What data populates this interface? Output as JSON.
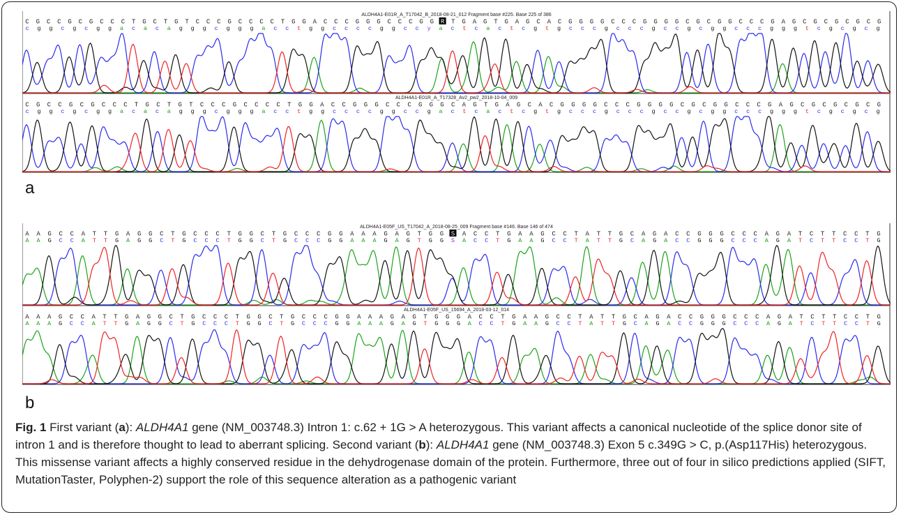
{
  "colors": {
    "A": "#19a319",
    "C": "#2a2aee",
    "G": "#111111",
    "T": "#ee2222",
    "N": "#8a2be2"
  },
  "figure": {
    "panel_a": {
      "label": "a",
      "trace_top": {
        "header": "ALDH4A1-E01R_A_T17042_B_2018-08-21_012 Fragment base #225. Base 225 of 386",
        "seq_upper": "CGCCGCGCCCTGCTGTCCCGCCCCTGGACCCGGGCCCGGRTGAGTGAGCACGGGGCCCGGGGCGCGGCCCGAGCGCGCGCG",
        "seq_lower": "cggcgcggacacagggcgggacctggccccggccyactcactcgtgcccgcccgccgcggcccgggtcgcgcg",
        "highlight": "R"
      },
      "trace_bottom": {
        "header": "ALDH4A1-E01R_A_T17328_Av2_pw2_2018-10-04_009",
        "seq_upper": "CGCCGCGCCCTGCTGTCCCGCCCCTGGACCGGGCCCGGGCAGTGAGCACGGGGCCCGGGGCGCGGCCCGAGCGCGCGCG",
        "seq_lower": "cggcgcggacacagggcgggacctggccccggccgactcactcgtgcccgcccgccgcggcccgggtcgcgcg"
      }
    },
    "panel_b": {
      "label": "b",
      "trace_top": {
        "header": "ALDH4A1-E05F_US_T17042_A_2018-08-25_009 Fragment base #146. Base 146 of 474",
        "seq_upper": "AAGCCATTGAGGCTGCCCTGGCTGCCCGGAAAGAGTGGSACCTGAAGCCTATTGCAGACCGGGCCCAGATCTTCCTG",
        "seq_lower": "AAGCCATTGAGGCTGCCCTGGCTGCCCGGAAAGAGTGGSACCTGAAGCCTATTGCAGACCGGGCCCAGATCTTCCTG",
        "highlight": "S"
      },
      "trace_bottom": {
        "header": "ALDH4A1-E05F_US_15694_A_2018-03-12_014",
        "seq_upper": "AAAGCCATTGAGGCTGCCCTGGCTGCCCGGAAAGAGTGGGACCTGAAGCCTATTGCAGACCGGGCCCAGATCTTCCTG",
        "seq_lower": "AAAGCCATTGAGGCTGCCCTGGCTGCCCGGAAAGAGTGGGACCTGAAGCCTATTGCAGACCGGGCCCAGATCTTCCTG"
      }
    },
    "caption": {
      "fig_label": "Fig. 1",
      "part1": " First variant (",
      "a_ref": "a",
      "part2": "): ",
      "gene1": "ALDH4A1",
      "part3": " gene (NM_003748.3) Intron 1: c.62 + 1G > A heterozygous. This variant affects a canonical nucleotide of the splice donor site of intron 1 and is therefore thought to lead to aberrant splicing. Second variant (",
      "b_ref": "b",
      "part4": "): ",
      "gene2": "ALDH4A1",
      "part5": " gene (NM_003748.3) Exon 5 c.349G > C, p.(Asp117His) heterozygous. This missense variant affects a highly conserved residue in the dehydrogenase domain of the protein. Furthermore, three out of four in silico predictions applied (SIFT, MutationTaster, Polyphen-2) support the role of this sequence alteration as a pathogenic variant"
    }
  }
}
